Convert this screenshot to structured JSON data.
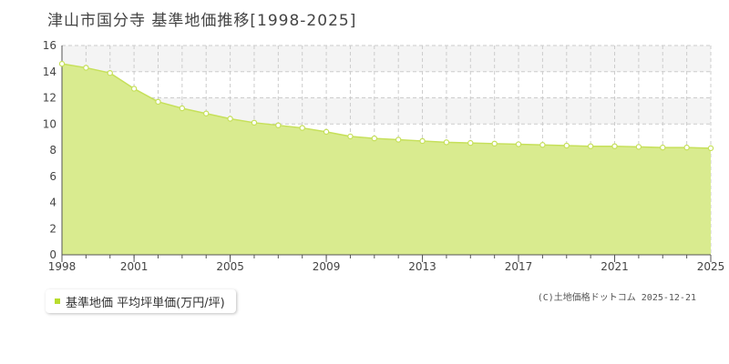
{
  "title": "津山市国分寺 基準地価推移[1998-2025]",
  "legend_label": "基準地価 平均坪単価(万円/坪)",
  "credit": "(C)土地価格ドットコム 2025-12-21",
  "colors": {
    "area_fill": "#d9eb8f",
    "line": "#c6e05a",
    "marker_fill": "#ffffff",
    "marker_stroke": "#c6e05a",
    "grid": "#cccccc",
    "plot_bg": "#ffffff",
    "band_bg": "#f4f4f4",
    "axis": "#555555",
    "legend_swatch": "#b8dc2e"
  },
  "chart_data": {
    "type": "area",
    "title": "津山市国分寺 基準地価推移[1998-2025]",
    "xlabel": "",
    "ylabel": "",
    "x": [
      1998,
      1999,
      2000,
      2001,
      2002,
      2003,
      2004,
      2005,
      2006,
      2007,
      2008,
      2009,
      2010,
      2011,
      2012,
      2013,
      2014,
      2015,
      2016,
      2017,
      2018,
      2019,
      2020,
      2021,
      2022,
      2023,
      2024,
      2025
    ],
    "series": [
      {
        "name": "基準地価 平均坪単価(万円/坪)",
        "values": [
          14.6,
          14.3,
          13.9,
          12.7,
          11.7,
          11.2,
          10.8,
          10.4,
          10.1,
          9.9,
          9.7,
          9.4,
          9.05,
          8.9,
          8.8,
          8.7,
          8.6,
          8.55,
          8.5,
          8.45,
          8.4,
          8.35,
          8.3,
          8.3,
          8.25,
          8.2,
          8.2,
          8.15
        ]
      }
    ],
    "xlim": [
      1998,
      2025
    ],
    "ylim": [
      0,
      16
    ],
    "x_ticks": [
      "1998",
      "2001",
      "2005",
      "2009",
      "2013",
      "2017",
      "2021",
      "2025"
    ],
    "y_ticks": [
      "0",
      "2",
      "4",
      "6",
      "8",
      "10",
      "12",
      "14",
      "16"
    ],
    "grid": true,
    "legend_position": "bottom-left"
  }
}
